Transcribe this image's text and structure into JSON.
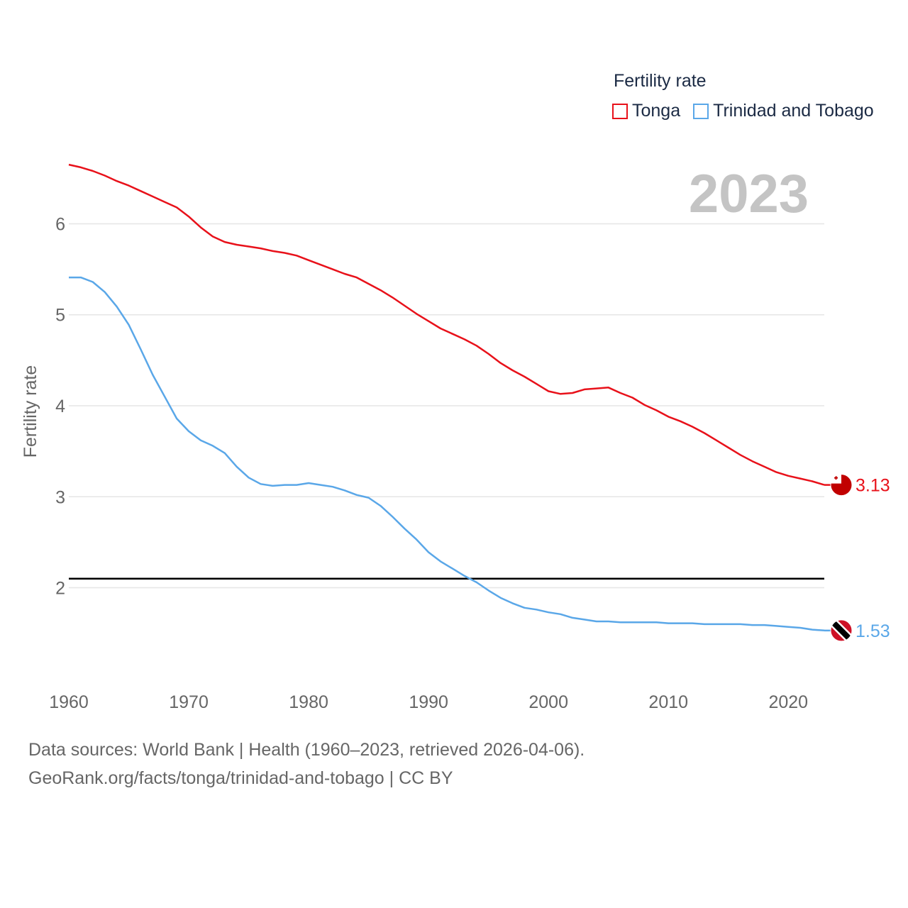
{
  "legend": {
    "title": "Fertility rate",
    "items": [
      {
        "label": "Tonga",
        "color": "#e8111a"
      },
      {
        "label": "Trinidad and Tobago",
        "color": "#5aa7e8"
      }
    ]
  },
  "year_label": "2023",
  "footer": {
    "line1": "Data sources: World Bank | Health (1960–2023, retrieved 2026-04-06).",
    "line2": "GeoRank.org/facts/tonga/trinidad-and-tobago | CC BY"
  },
  "chart_data": {
    "type": "line",
    "title": "Fertility rate",
    "xlabel": "",
    "ylabel": "Fertility rate",
    "xlim": [
      1960,
      2023
    ],
    "ylim": [
      1.1,
      6.9
    ],
    "x_ticks": [
      1960,
      1970,
      1980,
      1990,
      2000,
      2010,
      2020
    ],
    "y_ticks": [
      2,
      3,
      4,
      5,
      6
    ],
    "grid": true,
    "reference_line": {
      "y": 2.1,
      "color": "#000000"
    },
    "x": [
      1960,
      1961,
      1962,
      1963,
      1964,
      1965,
      1966,
      1967,
      1968,
      1969,
      1970,
      1971,
      1972,
      1973,
      1974,
      1975,
      1976,
      1977,
      1978,
      1979,
      1980,
      1981,
      1982,
      1983,
      1984,
      1985,
      1986,
      1987,
      1988,
      1989,
      1990,
      1991,
      1992,
      1993,
      1994,
      1995,
      1996,
      1997,
      1998,
      1999,
      2000,
      2001,
      2002,
      2003,
      2004,
      2005,
      2006,
      2007,
      2008,
      2009,
      2010,
      2011,
      2012,
      2013,
      2014,
      2015,
      2016,
      2017,
      2018,
      2019,
      2020,
      2021,
      2022,
      2023
    ],
    "series": [
      {
        "name": "Tonga",
        "color": "#e8111a",
        "end_label": "3.13",
        "values": [
          6.65,
          6.62,
          6.58,
          6.53,
          6.47,
          6.42,
          6.36,
          6.3,
          6.24,
          6.18,
          6.08,
          5.96,
          5.86,
          5.8,
          5.77,
          5.75,
          5.73,
          5.7,
          5.68,
          5.65,
          5.6,
          5.55,
          5.5,
          5.45,
          5.41,
          5.34,
          5.27,
          5.19,
          5.1,
          5.01,
          4.93,
          4.85,
          4.79,
          4.73,
          4.66,
          4.57,
          4.47,
          4.39,
          4.32,
          4.24,
          4.16,
          4.13,
          4.14,
          4.18,
          4.19,
          4.2,
          4.14,
          4.09,
          4.01,
          3.95,
          3.88,
          3.83,
          3.77,
          3.7,
          3.62,
          3.54,
          3.46,
          3.39,
          3.33,
          3.27,
          3.23,
          3.2,
          3.17,
          3.13
        ]
      },
      {
        "name": "Trinidad and Tobago",
        "color": "#5aa7e8",
        "end_label": "1.53",
        "values": [
          5.41,
          5.41,
          5.36,
          5.25,
          5.09,
          4.89,
          4.62,
          4.34,
          4.1,
          3.86,
          3.72,
          3.62,
          3.56,
          3.48,
          3.33,
          3.21,
          3.14,
          3.12,
          3.13,
          3.13,
          3.15,
          3.13,
          3.11,
          3.07,
          3.02,
          2.99,
          2.9,
          2.78,
          2.65,
          2.53,
          2.39,
          2.29,
          2.21,
          2.13,
          2.06,
          1.97,
          1.89,
          1.83,
          1.78,
          1.76,
          1.73,
          1.71,
          1.67,
          1.65,
          1.63,
          1.63,
          1.62,
          1.62,
          1.62,
          1.62,
          1.61,
          1.61,
          1.61,
          1.6,
          1.6,
          1.6,
          1.6,
          1.59,
          1.59,
          1.58,
          1.57,
          1.56,
          1.54,
          1.53
        ]
      }
    ]
  }
}
